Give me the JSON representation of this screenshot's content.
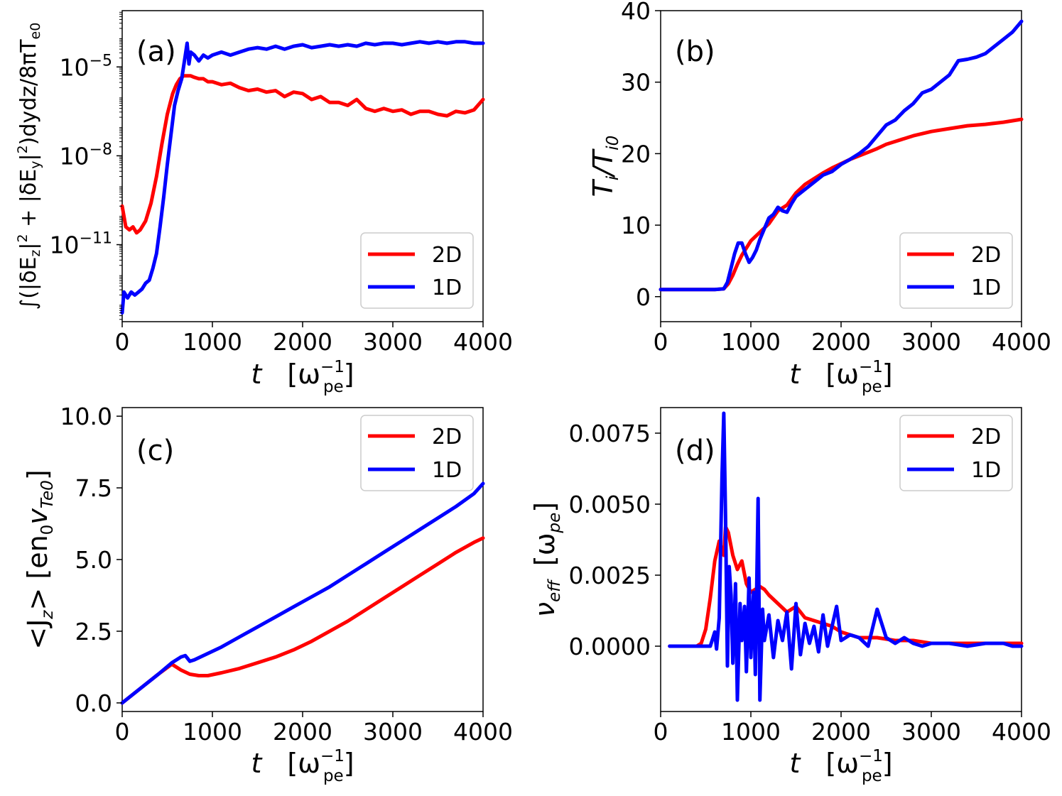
{
  "colors": {
    "2D": "#ff0000",
    "1D": "#0000ff",
    "axis": "#000000"
  },
  "chart_data": [
    {
      "id": "a",
      "type": "line",
      "panel_label": "(a)",
      "yscale": "log",
      "xlim": [
        0,
        4000
      ],
      "ylim_log10": [
        -13.6,
        -3.1
      ],
      "xticks": [
        0,
        1000,
        2000,
        3000,
        4000
      ],
      "xtick_labels": [
        "0",
        "1000",
        "2000",
        "3000",
        "4000"
      ],
      "yticks_log10": [
        -11,
        -8,
        -5
      ],
      "ytick_bases": [
        "10",
        "10",
        "10"
      ],
      "ytick_exps": [
        "−11",
        "−8",
        "−5"
      ],
      "xlabel": {
        "main": "t",
        "unit_open": "[ω",
        "unit_sup": "−1",
        "unit_sub": "pe",
        "unit_close": "]"
      },
      "ylabel": {
        "p1": "∫(|δE",
        "s1": "z",
        "p2": "|",
        "e1": "2",
        "p3": " + |δE",
        "s2": "y",
        "p4": "|",
        "e2": "2",
        "p5": ")dydz/8πT",
        "s3": "e0"
      },
      "legend": {
        "position": "lower right",
        "labels": [
          "2D",
          "1D"
        ]
      },
      "series": [
        {
          "name": "2D",
          "x": [
            0,
            40,
            80,
            120,
            160,
            200,
            260,
            320,
            380,
            440,
            500,
            560,
            600,
            640,
            680,
            720,
            760,
            800,
            850,
            900,
            950,
            1000,
            1100,
            1200,
            1300,
            1400,
            1500,
            1600,
            1700,
            1800,
            1900,
            2000,
            2100,
            2200,
            2300,
            2400,
            2500,
            2600,
            2700,
            2800,
            2900,
            3000,
            3100,
            3200,
            3300,
            3400,
            3500,
            3600,
            3700,
            3800,
            3900,
            4000
          ],
          "log10y": [
            -9.7,
            -10.4,
            -10.5,
            -10.4,
            -10.6,
            -10.5,
            -10.2,
            -9.6,
            -8.7,
            -7.6,
            -6.6,
            -5.9,
            -5.6,
            -5.4,
            -5.3,
            -5.3,
            -5.3,
            -5.35,
            -5.4,
            -5.4,
            -5.5,
            -5.5,
            -5.6,
            -5.55,
            -5.7,
            -5.8,
            -5.75,
            -5.85,
            -5.8,
            -6.0,
            -5.85,
            -5.9,
            -6.1,
            -6.0,
            -6.2,
            -6.2,
            -6.3,
            -6.1,
            -6.4,
            -6.5,
            -6.4,
            -6.5,
            -6.45,
            -6.6,
            -6.5,
            -6.5,
            -6.6,
            -6.65,
            -6.5,
            -6.55,
            -6.45,
            -6.1
          ]
        },
        {
          "name": "1D",
          "x": [
            0,
            20,
            60,
            100,
            140,
            180,
            220,
            260,
            300,
            340,
            380,
            420,
            460,
            500,
            540,
            580,
            620,
            660,
            700,
            720,
            740,
            760,
            800,
            850,
            900,
            950,
            1000,
            1100,
            1200,
            1300,
            1400,
            1500,
            1600,
            1700,
            1800,
            1900,
            2000,
            2100,
            2200,
            2300,
            2400,
            2500,
            2600,
            2700,
            2800,
            2900,
            3000,
            3100,
            3200,
            3300,
            3400,
            3500,
            3600,
            3700,
            3800,
            3900,
            4000
          ],
          "log10y": [
            -13.3,
            -12.6,
            -12.8,
            -12.6,
            -12.7,
            -12.6,
            -12.5,
            -12.3,
            -12.2,
            -11.8,
            -11.3,
            -10.4,
            -9.4,
            -8.3,
            -7.3,
            -6.3,
            -5.8,
            -5.4,
            -4.6,
            -4.2,
            -4.9,
            -4.5,
            -4.6,
            -4.8,
            -4.6,
            -4.7,
            -4.6,
            -4.5,
            -4.6,
            -4.5,
            -4.4,
            -4.35,
            -4.4,
            -4.3,
            -4.4,
            -4.3,
            -4.25,
            -4.35,
            -4.3,
            -4.25,
            -4.3,
            -4.25,
            -4.3,
            -4.2,
            -4.25,
            -4.2,
            -4.2,
            -4.25,
            -4.2,
            -4.15,
            -4.2,
            -4.15,
            -4.2,
            -4.15,
            -4.15,
            -4.2,
            -4.2
          ]
        }
      ]
    },
    {
      "id": "b",
      "type": "line",
      "panel_label": "(b)",
      "xlim": [
        0,
        4000
      ],
      "ylim": [
        -3.5,
        40
      ],
      "xticks": [
        0,
        1000,
        2000,
        3000,
        4000
      ],
      "xtick_labels": [
        "0",
        "1000",
        "2000",
        "3000",
        "4000"
      ],
      "yticks": [
        0,
        10,
        20,
        30,
        40
      ],
      "ytick_labels": [
        "0",
        "10",
        "20",
        "30",
        "40"
      ],
      "xlabel": {
        "main": "t",
        "unit_open": "[ω",
        "unit_sup": "−1",
        "unit_sub": "pe",
        "unit_close": "]"
      },
      "ylabel": {
        "t1": "T",
        "s1": "i",
        "t2": "/T",
        "s2": "i0"
      },
      "legend": {
        "position": "lower right",
        "labels": [
          "2D",
          "1D"
        ]
      },
      "series": [
        {
          "name": "2D",
          "x": [
            0,
            600,
            700,
            750,
            800,
            850,
            900,
            950,
            1000,
            1100,
            1200,
            1300,
            1400,
            1500,
            1600,
            1700,
            1800,
            1900,
            2000,
            2100,
            2200,
            2300,
            2400,
            2500,
            2600,
            2700,
            2800,
            2900,
            3000,
            3200,
            3400,
            3600,
            3800,
            4000
          ],
          "y": [
            1,
            1,
            1.1,
            1.8,
            3,
            4.5,
            5.8,
            6.8,
            7.8,
            9,
            10.2,
            12,
            12.8,
            14.5,
            15.7,
            16.5,
            17.3,
            18,
            18.6,
            19.2,
            19.7,
            20.2,
            20.7,
            21.3,
            21.7,
            22.1,
            22.5,
            22.8,
            23.1,
            23.5,
            23.9,
            24.1,
            24.4,
            24.8
          ]
        },
        {
          "name": "1D",
          "x": [
            0,
            600,
            700,
            740,
            780,
            820,
            860,
            900,
            940,
            980,
            1020,
            1060,
            1100,
            1150,
            1200,
            1250,
            1300,
            1350,
            1400,
            1450,
            1500,
            1600,
            1700,
            1800,
            1900,
            2000,
            2100,
            2200,
            2300,
            2400,
            2500,
            2600,
            2700,
            2800,
            2900,
            3000,
            3100,
            3200,
            3300,
            3400,
            3500,
            3600,
            3700,
            3800,
            3900,
            4000
          ],
          "y": [
            1,
            1,
            1.1,
            2,
            4,
            6,
            7.5,
            7.5,
            6,
            4.8,
            5.5,
            6.5,
            8,
            9.5,
            11,
            11.5,
            12.5,
            12,
            11.8,
            13,
            14,
            15,
            16,
            17,
            17.5,
            18.5,
            19.2,
            20,
            21,
            22.5,
            24,
            24.7,
            26,
            27,
            28.5,
            29,
            30,
            31,
            33,
            33.2,
            33.5,
            34,
            35,
            36,
            37,
            38.5
          ]
        }
      ]
    },
    {
      "id": "c",
      "type": "line",
      "panel_label": "(c)",
      "xlim": [
        0,
        4000
      ],
      "ylim": [
        -0.3,
        10.3
      ],
      "xticks": [
        0,
        1000,
        2000,
        3000,
        4000
      ],
      "xtick_labels": [
        "0",
        "1000",
        "2000",
        "3000",
        "4000"
      ],
      "yticks": [
        0,
        2.5,
        5,
        7.5,
        10
      ],
      "ytick_labels": [
        "0.0",
        "2.5",
        "5.0",
        "7.5",
        "10.0"
      ],
      "xlabel": {
        "main": "t",
        "unit_open": "[ω",
        "unit_sup": "−1",
        "unit_sub": "pe",
        "unit_close": "]"
      },
      "ylabel": {
        "t1": "<J",
        "s1": "z",
        "t2": "> [en",
        "s2": "0",
        "t3": "v",
        "s3": "Te0",
        "t4": "]"
      },
      "legend": {
        "position": "upper right",
        "labels": [
          "2D",
          "1D"
        ]
      },
      "series": [
        {
          "name": "2D",
          "x": [
            0,
            200,
            400,
            550,
            650,
            750,
            850,
            950,
            1100,
            1300,
            1500,
            1700,
            1900,
            2100,
            2300,
            2500,
            2700,
            2900,
            3100,
            3300,
            3500,
            3700,
            3900,
            4000
          ],
          "y": [
            0,
            0.5,
            1.0,
            1.35,
            1.15,
            1.0,
            0.95,
            0.95,
            1.05,
            1.2,
            1.4,
            1.6,
            1.85,
            2.15,
            2.5,
            2.85,
            3.25,
            3.65,
            4.05,
            4.45,
            4.85,
            5.25,
            5.6,
            5.75
          ]
        },
        {
          "name": "1D",
          "x": [
            0,
            200,
            400,
            550,
            650,
            700,
            750,
            800,
            900,
            1000,
            1100,
            1300,
            1500,
            1700,
            1900,
            2100,
            2300,
            2500,
            2700,
            2900,
            3100,
            3300,
            3500,
            3700,
            3900,
            4000
          ],
          "y": [
            0,
            0.5,
            1.0,
            1.4,
            1.6,
            1.65,
            1.45,
            1.5,
            1.65,
            1.8,
            1.95,
            2.3,
            2.65,
            3.0,
            3.35,
            3.7,
            4.05,
            4.45,
            4.85,
            5.25,
            5.65,
            6.05,
            6.45,
            6.85,
            7.3,
            7.65
          ]
        }
      ]
    },
    {
      "id": "d",
      "type": "line",
      "panel_label": "(d)",
      "xlim": [
        0,
        4000
      ],
      "ylim": [
        -0.0023,
        0.0084
      ],
      "xticks": [
        0,
        1000,
        2000,
        3000,
        4000
      ],
      "xtick_labels": [
        "0",
        "1000",
        "2000",
        "3000",
        "4000"
      ],
      "yticks": [
        0,
        0.0025,
        0.005,
        0.0075
      ],
      "ytick_labels": [
        "0.0000",
        "0.0025",
        "0.0050",
        "0.0075"
      ],
      "xlabel": {
        "main": "t",
        "unit_open": "[ω",
        "unit_sup": "−1",
        "unit_sub": "pe",
        "unit_close": "]"
      },
      "ylabel": {
        "t1": "ν",
        "s1": "eff",
        "t2": "[ω",
        "s2": "pe",
        "t3": "]"
      },
      "legend": {
        "position": "upper right",
        "labels": [
          "2D",
          "1D"
        ]
      },
      "series": [
        {
          "name": "2D",
          "x": [
            100,
            400,
            450,
            500,
            550,
            600,
            650,
            700,
            720,
            750,
            800,
            850,
            900,
            950,
            1000,
            1050,
            1100,
            1150,
            1200,
            1300,
            1400,
            1500,
            1600,
            1700,
            1800,
            1900,
            2000,
            2200,
            2400,
            2600,
            2800,
            3000,
            3200,
            3400,
            3600,
            3800,
            4000
          ],
          "y": [
            0,
            0,
            0.0001,
            0.0006,
            0.0017,
            0.003,
            0.0037,
            0.0032,
            0.0042,
            0.004,
            0.0032,
            0.0027,
            0.003,
            0.0022,
            0.0019,
            0.002,
            0.0021,
            0.002,
            0.0018,
            0.0015,
            0.0012,
            0.0014,
            0.001,
            0.0009,
            0.0008,
            0.0007,
            0.0005,
            0.0003,
            0.0003,
            0.0002,
            0.0002,
            0.0001,
            0.0001,
            0.0001,
            0.0001,
            0.0001,
            0.0001
          ]
        },
        {
          "name": "1D",
          "x": [
            100,
            550,
            600,
            620,
            650,
            680,
            700,
            720,
            740,
            760,
            780,
            800,
            830,
            850,
            880,
            900,
            930,
            950,
            980,
            1000,
            1030,
            1050,
            1080,
            1100,
            1130,
            1150,
            1200,
            1250,
            1300,
            1350,
            1400,
            1450,
            1500,
            1550,
            1600,
            1650,
            1700,
            1750,
            1800,
            1850,
            1900,
            1950,
            2000,
            2100,
            2200,
            2300,
            2400,
            2500,
            2600,
            2700,
            2800,
            2900,
            3000,
            3200,
            3400,
            3600,
            3800,
            3900,
            4000
          ],
          "y": [
            0,
            0,
            0.0005,
            -0.0001,
            0.001,
            0.006,
            0.0082,
            0.0045,
            -0.0007,
            0.0028,
            0.0018,
            -0.0006,
            0.0022,
            -0.0019,
            0.0015,
            0.0002,
            0.0014,
            -0.0009,
            0.0024,
            -0.0004,
            0.0019,
            -0.001,
            0.0052,
            -0.0019,
            0.0013,
            0.0002,
            0.0011,
            -0.0004,
            0.0009,
            0.0002,
            0.0012,
            -0.0008,
            0.0015,
            -0.0003,
            0.0008,
            0.0001,
            0.0007,
            -0.0002,
            0.0011,
            0.0,
            0.0007,
            0.0014,
            0.0002,
            0.0004,
            0.0003,
            0.0,
            0.0013,
            0.0003,
            0.0001,
            0.0003,
            0.0001,
            0.0,
            0.0001,
            0.0001,
            0.0,
            0.0001,
            0.0001,
            0.0,
            0.0
          ]
        }
      ]
    }
  ]
}
